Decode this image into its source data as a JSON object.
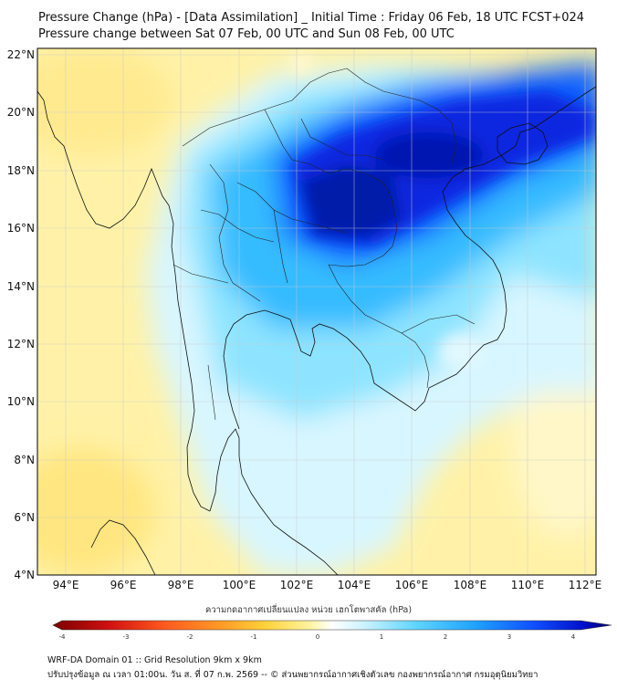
{
  "title_line1": "Pressure Change (hPa) - [Data Assimilation] _ Initial Time : Friday 06 Feb, 18 UTC FCST+024",
  "title_line2": "Pressure change between Sat 07 Feb, 00 UTC and Sun 08 Feb, 00 UTC",
  "lat_labels": [
    "22°N",
    "20°N",
    "18°N",
    "16°N",
    "14°N",
    "12°N",
    "10°N",
    "8°N",
    "6°N",
    "4°N"
  ],
  "lon_labels": [
    "94°E",
    "96°E",
    "98°E",
    "100°E",
    "102°E",
    "104°E",
    "106°E",
    "108°E",
    "110°E",
    "112°E"
  ],
  "colorbar": {
    "caption": "ความกดอากาศเปลี่ยนแปลง หน่วย เฮกโตพาสคัล (hPa)",
    "ticks": [
      "-4",
      "-3",
      "-2",
      "-1",
      "0",
      "1",
      "2",
      "3",
      "4"
    ],
    "colors": [
      "#7a0000",
      "#d01010",
      "#ff5a1e",
      "#ff9a26",
      "#ffd23a",
      "#fff4a0",
      "#ffffff",
      "#c8f2ff",
      "#5fd4ff",
      "#1ea0ff",
      "#1050ff",
      "#0010c8",
      "#000070"
    ]
  },
  "footer_line1": "WRF-DA Domain 01 :: Grid Resolution 9km x 9km",
  "footer_line2": "ปรับปรุงข้อมูล ณ เวลา 01:00น. วัน ส. ที่ 07 ก.พ. 2569 -- © ส่วนพยากรณ์อากาศเชิงตัวเลข กองพยากรณ์อากาศ กรมอุตุนิยมวิทยา"
}
